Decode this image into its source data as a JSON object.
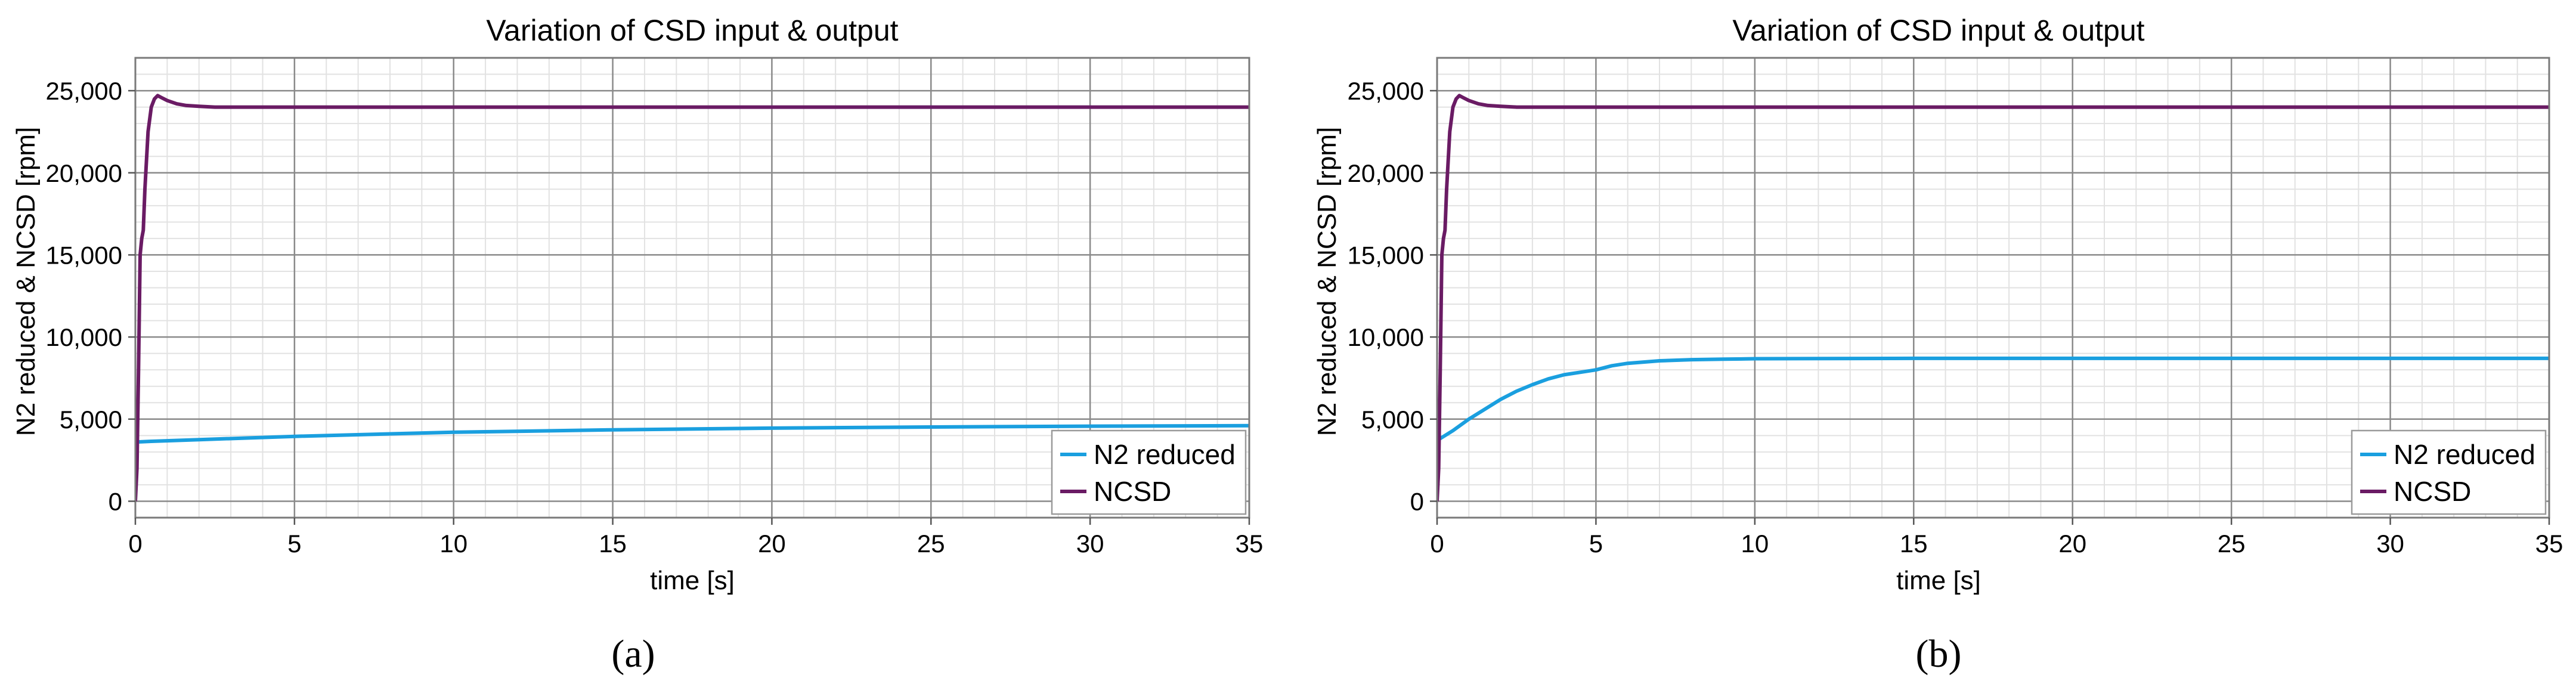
{
  "figure": {
    "panels": [
      {
        "label": "(a)"
      },
      {
        "label": "(b)"
      }
    ]
  },
  "chart_data": [
    {
      "type": "line",
      "panel": "(a)",
      "title": "Variation of CSD input & output",
      "xlabel": "time [s]",
      "ylabel": "N2 reduced & NCSD [rpm]",
      "xlim": [
        0,
        35
      ],
      "ylim": [
        -1000,
        27000
      ],
      "xticks": [
        0,
        5,
        10,
        15,
        20,
        25,
        30,
        35
      ],
      "yticks": [
        0,
        5000,
        10000,
        15000,
        20000,
        25000
      ],
      "ytick_labels": [
        "0",
        "5,000",
        "10,000",
        "15,000",
        "20,000",
        "25,000"
      ],
      "grid": true,
      "legend_position": "bottom-right",
      "series": [
        {
          "name": "N2 reduced",
          "color": "#1a9fdf",
          "x": [
            0,
            0.5,
            2,
            5,
            10,
            15,
            20,
            25,
            30,
            35
          ],
          "y": [
            3600,
            3650,
            3750,
            3950,
            4200,
            4350,
            4450,
            4520,
            4570,
            4600
          ]
        },
        {
          "name": "NCSD",
          "color": "#6a1b64",
          "x": [
            0,
            0.05,
            0.1,
            0.15,
            0.2,
            0.25,
            0.3,
            0.4,
            0.5,
            0.6,
            0.7,
            0.8,
            1.0,
            1.3,
            1.6,
            2.0,
            2.5,
            3.0,
            5,
            10,
            20,
            35
          ],
          "y": [
            0,
            2000,
            8000,
            15000,
            16000,
            16500,
            19000,
            22500,
            24000,
            24500,
            24700,
            24600,
            24400,
            24200,
            24100,
            24050,
            24000,
            24000,
            24000,
            24000,
            24000,
            24000
          ]
        }
      ]
    },
    {
      "type": "line",
      "panel": "(b)",
      "title": "Variation of CSD input & output",
      "xlabel": "time [s]",
      "ylabel": "N2 reduced & NCSD [rpm]",
      "xlim": [
        0,
        35
      ],
      "ylim": [
        -1000,
        27000
      ],
      "xticks": [
        0,
        5,
        10,
        15,
        20,
        25,
        30,
        35
      ],
      "yticks": [
        0,
        5000,
        10000,
        15000,
        20000,
        25000
      ],
      "ytick_labels": [
        "0",
        "5,000",
        "10,000",
        "15,000",
        "20,000",
        "25,000"
      ],
      "grid": true,
      "legend_position": "bottom-right",
      "series": [
        {
          "name": "N2 reduced",
          "color": "#1a9fdf",
          "x": [
            0,
            0.5,
            1,
            1.5,
            2,
            2.5,
            3,
            3.5,
            4,
            4.5,
            5,
            5.5,
            6,
            7,
            8,
            9,
            10,
            15,
            20,
            25,
            30,
            35
          ],
          "y": [
            3700,
            4300,
            5000,
            5600,
            6200,
            6700,
            7100,
            7450,
            7700,
            7850,
            8000,
            8250,
            8400,
            8550,
            8620,
            8650,
            8680,
            8700,
            8700,
            8700,
            8700,
            8700
          ]
        },
        {
          "name": "NCSD",
          "color": "#6a1b64",
          "x": [
            0,
            0.05,
            0.1,
            0.15,
            0.2,
            0.25,
            0.3,
            0.4,
            0.5,
            0.6,
            0.7,
            0.8,
            1.0,
            1.3,
            1.6,
            2.0,
            2.5,
            3.0,
            5,
            10,
            20,
            35
          ],
          "y": [
            0,
            2000,
            8000,
            15000,
            16000,
            16500,
            19000,
            22500,
            24000,
            24500,
            24700,
            24600,
            24400,
            24200,
            24100,
            24050,
            24000,
            24000,
            24000,
            24000,
            24000,
            24000
          ]
        }
      ]
    }
  ]
}
